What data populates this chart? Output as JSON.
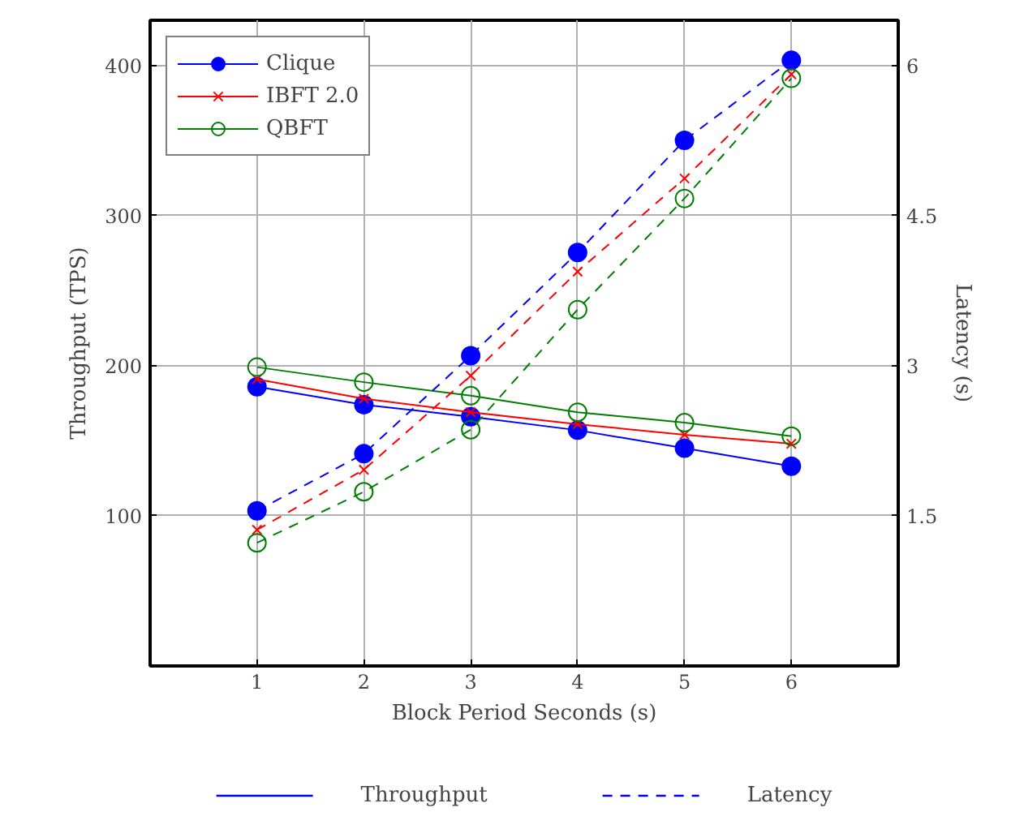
{
  "chart_data": {
    "type": "line",
    "xlabel": "Block Period Seconds (s)",
    "ylabel": "Throughput (TPS)",
    "y2label": "Latency (s)",
    "x": [
      1,
      2,
      3,
      4,
      5,
      6
    ],
    "series": [
      {
        "name": "Clique",
        "color": "#0000ff",
        "values": [
          186,
          174,
          166,
          157,
          145,
          133
        ],
        "marker": "circle",
        "line_style": "solid"
      },
      {
        "name": "IBFT 2.0",
        "color": "#ff0000",
        "values": [
          191,
          178,
          169,
          161,
          154,
          148
        ],
        "marker": "cross",
        "line_style": "solid"
      },
      {
        "name": "QBFT",
        "color": "#007f00",
        "values": [
          199,
          189,
          180,
          169,
          162,
          153
        ],
        "marker": "circle_open",
        "line_style": "solid"
      },
      {
        "color": "#0000ff",
        "values": [
          1.55,
          2.12,
          3.1,
          4.13,
          5.25,
          6.05
        ],
        "marker": "circle",
        "line_style": "dashed",
        "axis": "y2"
      },
      {
        "color": "#ff0000",
        "values": [
          1.36,
          1.96,
          2.9,
          3.94,
          4.87,
          5.91
        ],
        "marker": "cross",
        "line_style": "dashed",
        "axis": "y2"
      },
      {
        "color": "#007f00",
        "values": [
          1.23,
          1.74,
          2.36,
          3.56,
          4.67,
          5.87
        ],
        "marker": "circle_open",
        "line_style": "dashed",
        "axis": "y2"
      }
    ],
    "annotations": [
      "Throughput",
      "Latency"
    ],
    "xlim": [
      0,
      7
    ],
    "xticks": [
      1,
      2,
      3,
      4,
      5,
      6
    ],
    "ylim": [
      0,
      430
    ],
    "yticks": [
      100,
      200,
      300,
      400
    ],
    "y2lim": [
      0,
      6.45
    ],
    "y2ticks": [
      1.5,
      3,
      4.5,
      6
    ],
    "grid": true,
    "legend": "top left"
  }
}
